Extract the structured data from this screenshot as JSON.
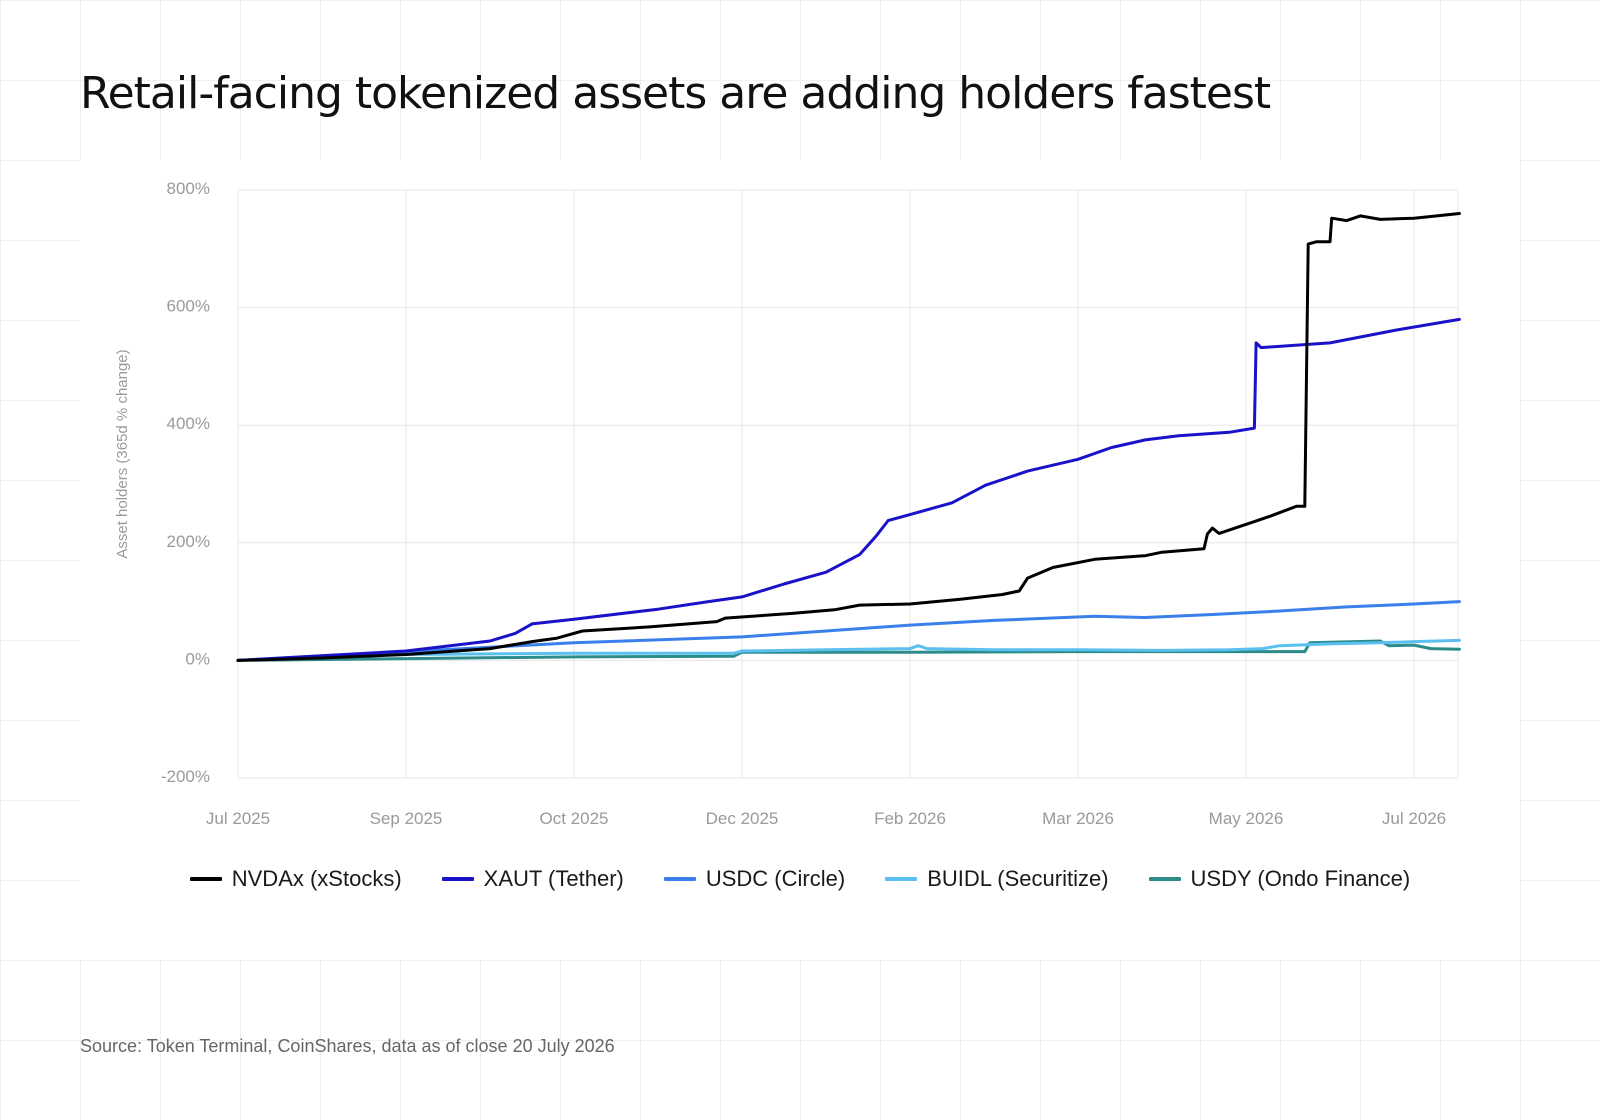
{
  "title": "Retail-facing tokenized assets are adding holders fastest",
  "source": "Source: Token Terminal, CoinShares, data as of close 20 July 2026",
  "chart_data": {
    "type": "line",
    "ylabel": "Asset holders (365d % change)",
    "ylim": [
      -200,
      800
    ],
    "y_ticks": [
      -200,
      0,
      200,
      400,
      600,
      800
    ],
    "y_tick_labels": [
      "-200%",
      "0%",
      "200%",
      "400%",
      "600%",
      "800%"
    ],
    "x_ticks": [
      0,
      1,
      2,
      3,
      4,
      5,
      6,
      7
    ],
    "x_tick_labels": [
      "Jul 2025",
      "Sep 2025",
      "Oct 2025",
      "Dec 2025",
      "Feb 2026",
      "Mar 2026",
      "May 2026",
      "Jul 2026"
    ],
    "xlim": [
      0,
      7.27
    ],
    "grid": true,
    "legend_position": "bottom",
    "series": [
      {
        "name": "NVDAx (xStocks)",
        "color": "#000000",
        "points": [
          [
            0,
            0
          ],
          [
            0.5,
            4
          ],
          [
            1,
            10
          ],
          [
            1.5,
            20
          ],
          [
            1.75,
            32
          ],
          [
            1.9,
            38
          ],
          [
            2.05,
            50
          ],
          [
            2.45,
            57
          ],
          [
            2.85,
            66
          ],
          [
            2.9,
            72
          ],
          [
            3.3,
            80
          ],
          [
            3.55,
            86
          ],
          [
            3.7,
            94
          ],
          [
            4.0,
            96
          ],
          [
            4.3,
            104
          ],
          [
            4.55,
            112
          ],
          [
            4.65,
            118
          ],
          [
            4.7,
            140
          ],
          [
            4.85,
            158
          ],
          [
            5.1,
            172
          ],
          [
            5.4,
            178
          ],
          [
            5.5,
            184
          ],
          [
            5.75,
            190
          ],
          [
            5.77,
            215
          ],
          [
            5.8,
            225
          ],
          [
            5.84,
            216
          ],
          [
            6.05,
            236
          ],
          [
            6.15,
            246
          ],
          [
            6.3,
            262
          ],
          [
            6.35,
            262
          ],
          [
            6.37,
            708
          ],
          [
            6.42,
            712
          ],
          [
            6.5,
            712
          ],
          [
            6.51,
            752
          ],
          [
            6.6,
            748
          ],
          [
            6.68,
            756
          ],
          [
            6.8,
            750
          ],
          [
            7.0,
            752
          ],
          [
            7.2,
            758
          ],
          [
            7.27,
            760
          ]
        ]
      },
      {
        "name": "XAUT (Tether)",
        "color": "#1a12c8",
        "points": [
          [
            0,
            0
          ],
          [
            1,
            16
          ],
          [
            1.5,
            33
          ],
          [
            1.65,
            46
          ],
          [
            1.75,
            62
          ],
          [
            2.0,
            70
          ],
          [
            2.5,
            87
          ],
          [
            2.8,
            100
          ],
          [
            3.0,
            108
          ],
          [
            3.25,
            130
          ],
          [
            3.5,
            150
          ],
          [
            3.7,
            180
          ],
          [
            3.8,
            212
          ],
          [
            3.87,
            238
          ],
          [
            4.0,
            248
          ],
          [
            4.25,
            268
          ],
          [
            4.45,
            298
          ],
          [
            4.7,
            322
          ],
          [
            5.0,
            342
          ],
          [
            5.2,
            362
          ],
          [
            5.4,
            375
          ],
          [
            5.6,
            382
          ],
          [
            5.9,
            388
          ],
          [
            6.05,
            395
          ],
          [
            6.06,
            540
          ],
          [
            6.09,
            532
          ],
          [
            6.5,
            540
          ],
          [
            6.9,
            562
          ],
          [
            7.27,
            580
          ]
        ]
      },
      {
        "name": "USDC (Circle)",
        "color": "#3a7fea",
        "points": [
          [
            0,
            0
          ],
          [
            1,
            15
          ],
          [
            2,
            30
          ],
          [
            3,
            40
          ],
          [
            3.5,
            50
          ],
          [
            4,
            60
          ],
          [
            4.5,
            68
          ],
          [
            5.1,
            75
          ],
          [
            5.4,
            73
          ],
          [
            5.8,
            78
          ],
          [
            6.2,
            84
          ],
          [
            6.6,
            91
          ],
          [
            7.0,
            96
          ],
          [
            7.27,
            100
          ]
        ]
      },
      {
        "name": "BUIDL (Securitize)",
        "color": "#5bc0ef",
        "points": [
          [
            0,
            0
          ],
          [
            0.5,
            8
          ],
          [
            1,
            10
          ],
          [
            2,
            12
          ],
          [
            2.95,
            12
          ],
          [
            3.0,
            16
          ],
          [
            3.5,
            18
          ],
          [
            4.0,
            20
          ],
          [
            4.05,
            25
          ],
          [
            4.1,
            20
          ],
          [
            4.5,
            18
          ],
          [
            5.0,
            18
          ],
          [
            5.5,
            17
          ],
          [
            5.9,
            18
          ],
          [
            6.1,
            20
          ],
          [
            6.2,
            25
          ],
          [
            6.5,
            28
          ],
          [
            6.8,
            30
          ],
          [
            7.0,
            32
          ],
          [
            7.27,
            34
          ]
        ]
      },
      {
        "name": "USDY (Ondo Finance)",
        "color": "#2b8c8a",
        "points": [
          [
            0,
            0
          ],
          [
            1,
            3
          ],
          [
            2,
            6
          ],
          [
            2.95,
            7
          ],
          [
            3.0,
            14
          ],
          [
            3.5,
            14
          ],
          [
            4.0,
            14
          ],
          [
            5.0,
            15
          ],
          [
            6.0,
            15
          ],
          [
            6.35,
            15
          ],
          [
            6.38,
            30
          ],
          [
            6.8,
            33
          ],
          [
            6.85,
            25
          ],
          [
            7.0,
            26
          ],
          [
            7.1,
            20
          ],
          [
            7.27,
            19
          ]
        ]
      }
    ]
  }
}
